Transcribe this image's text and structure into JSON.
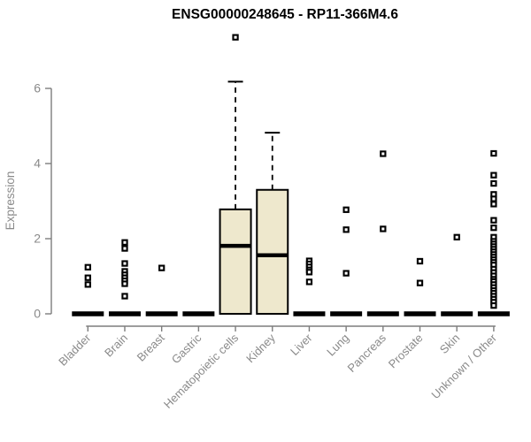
{
  "title": "ENSG00000248645 - RP11-366M4.6",
  "chart_data": {
    "type": "boxplot",
    "title": "ENSG00000248645 - RP11-366M4.6",
    "xlabel": "",
    "ylabel": "Expression",
    "ylim": [
      0,
      7.5
    ],
    "yticks": [
      0,
      2,
      4,
      6
    ],
    "grid": false,
    "legend": "none",
    "categories": [
      "Bladder",
      "Brain",
      "Breast",
      "Gastric",
      "Hematopoietic cells",
      "Kidney",
      "Liver",
      "Lung",
      "Pancreas",
      "Prostate",
      "Skin",
      "Unknown / Other"
    ],
    "series": [
      {
        "category": "Bladder",
        "whisker_low": 0,
        "q1": 0,
        "median": 0,
        "q3": 0,
        "whisker_high": 0,
        "outliers": [
          1.24,
          0.96,
          0.78
        ]
      },
      {
        "category": "Brain",
        "whisker_low": 0,
        "q1": 0,
        "median": 0,
        "q3": 0,
        "whisker_high": 0,
        "outliers": [
          1.9,
          1.74,
          1.34,
          1.13,
          1.04,
          0.96,
          0.88,
          0.8,
          0.47
        ]
      },
      {
        "category": "Breast",
        "whisker_low": 0,
        "q1": 0,
        "median": 0,
        "q3": 0,
        "whisker_high": 0,
        "outliers": [
          1.22
        ]
      },
      {
        "category": "Gastric",
        "whisker_low": 0,
        "q1": 0,
        "median": 0,
        "q3": 0,
        "whisker_high": 0,
        "outliers": []
      },
      {
        "category": "Hematopoietic cells",
        "whisker_low": 0,
        "q1": 0,
        "median": 1.81,
        "q3": 2.78,
        "whisker_high": 6.18,
        "outliers": [
          7.36
        ]
      },
      {
        "category": "Kidney",
        "whisker_low": 0,
        "q1": 0,
        "median": 1.56,
        "q3": 3.3,
        "whisker_high": 4.82,
        "outliers": []
      },
      {
        "category": "Liver",
        "whisker_low": 0,
        "q1": 0,
        "median": 0,
        "q3": 0,
        "whisker_high": 0,
        "outliers": [
          1.41,
          1.33,
          1.25,
          1.17,
          1.11,
          0.85
        ]
      },
      {
        "category": "Lung",
        "whisker_low": 0,
        "q1": 0,
        "median": 0,
        "q3": 0,
        "whisker_high": 0,
        "outliers": [
          2.77,
          2.24,
          1.08
        ]
      },
      {
        "category": "Pancreas",
        "whisker_low": 0,
        "q1": 0,
        "median": 0,
        "q3": 0,
        "whisker_high": 0,
        "outliers": [
          4.26,
          2.26
        ]
      },
      {
        "category": "Prostate",
        "whisker_low": 0,
        "q1": 0,
        "median": 0,
        "q3": 0,
        "whisker_high": 0,
        "outliers": [
          1.4,
          0.82
        ]
      },
      {
        "category": "Skin",
        "whisker_low": 0,
        "q1": 0,
        "median": 0,
        "q3": 0,
        "whisker_high": 0,
        "outliers": [
          2.04
        ]
      },
      {
        "category": "Unknown / Other",
        "whisker_low": 0,
        "q1": 0,
        "median": 0,
        "q3": 0,
        "whisker_high": 0,
        "outliers": [
          4.27,
          3.69,
          3.47,
          3.18,
          3.06,
          2.92,
          2.49,
          2.29,
          2.04,
          1.93,
          1.86,
          1.79,
          1.72,
          1.65,
          1.58,
          1.51,
          1.44,
          1.37,
          1.3,
          1.19,
          1.1,
          1.01,
          0.92,
          0.86,
          0.78,
          0.7,
          0.62,
          0.55,
          0.47,
          0.39,
          0.31,
          0.22
        ]
      }
    ],
    "colors": {
      "box_fill": "#EEE8CD",
      "box_stroke": "#000000",
      "median": "#000000",
      "outlier": "#000000",
      "axis": "#7d7d7d",
      "tick_text": "#8a8a8a",
      "title_text": "#000000"
    }
  }
}
